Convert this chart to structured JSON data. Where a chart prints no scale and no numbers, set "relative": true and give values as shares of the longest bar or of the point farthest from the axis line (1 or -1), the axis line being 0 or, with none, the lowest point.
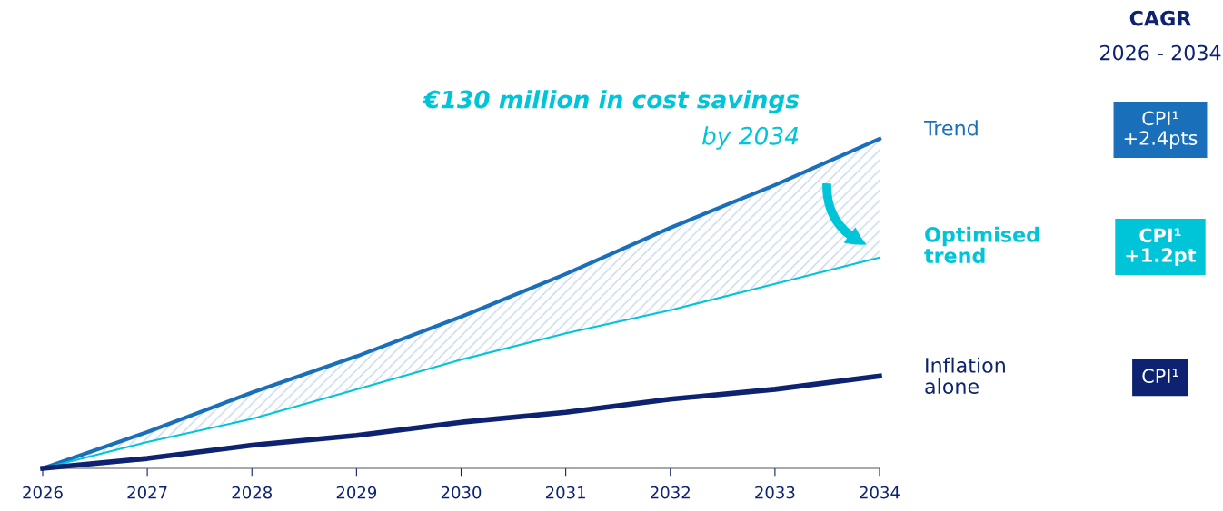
{
  "chart_data": {
    "type": "line",
    "relative": true,
    "title": "€130 million in cost savings",
    "subtitle": "by 2034",
    "x": [
      2026,
      2027,
      2028,
      2029,
      2030,
      2031,
      2032,
      2033,
      2034
    ],
    "xlim": [
      2026,
      2034
    ],
    "xticks": [
      2026,
      2027,
      2028,
      2029,
      2030,
      2031,
      2032,
      2033,
      2034
    ],
    "tick_labels": "x",
    "grid": false,
    "legend": false,
    "marker": "none",
    "line_style": "solid",
    "series": [
      {
        "name": "Trend",
        "color": "#1a6fba",
        "values": [
          0,
          0.11,
          0.23,
          0.34,
          0.46,
          0.59,
          0.73,
          0.86,
          1
        ]
      },
      {
        "name": "Optimised trend",
        "color": "#00c4d8",
        "values": [
          0,
          0.08,
          0.15,
          0.24,
          0.33,
          0.41,
          0.48,
          0.56,
          0.64
        ],
        "lower": [
          0,
          0.08,
          0.15,
          0.24,
          0.33,
          0.41,
          0.48,
          0.56,
          0.64
        ],
        "upper": [
          0,
          0.11,
          0.23,
          0.34,
          0.46,
          0.59,
          0.73,
          0.86,
          1
        ]
      },
      {
        "name": "Inflation alone",
        "color": "#0d2270",
        "values": [
          0,
          0.03,
          0.07,
          0.1,
          0.14,
          0.17,
          0.21,
          0.24,
          0.28
        ]
      }
    ],
    "annotations": [
      "CAGR",
      "2026 - 2034",
      "CPI¹\n+2.4pts",
      "CPI¹\n+1.2pt",
      "CPI¹"
    ]
  }
}
